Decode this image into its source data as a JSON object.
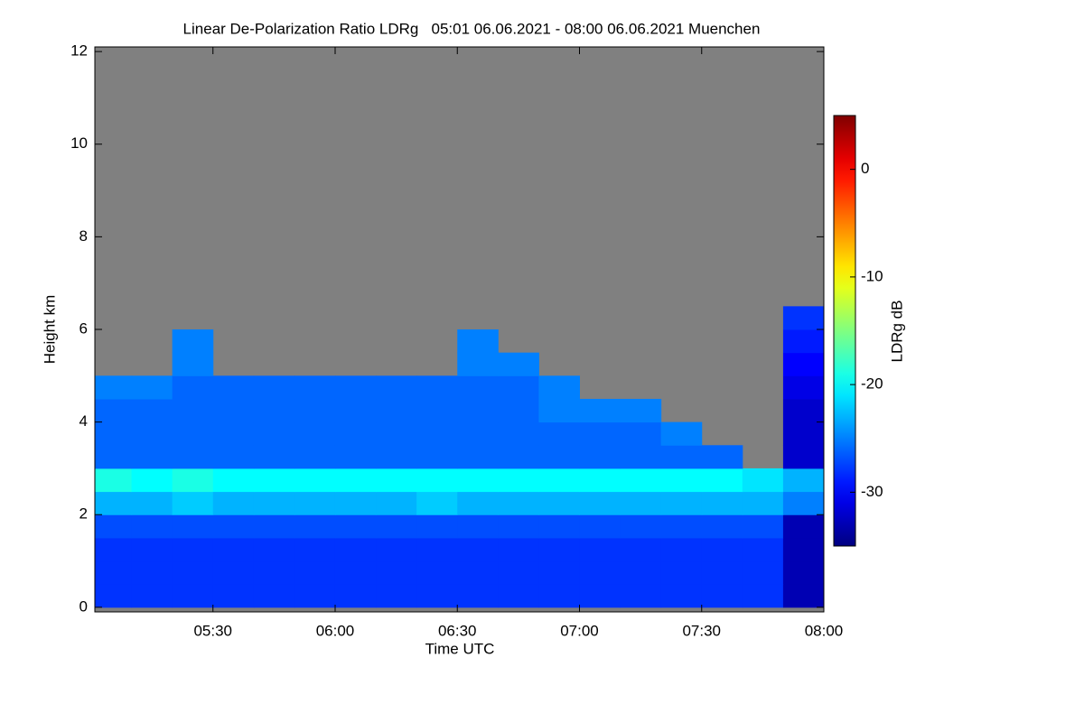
{
  "chart_data": {
    "type": "heatmap",
    "title": "Linear De-Polarization Ratio LDRg   05:01 06.06.2021 - 08:00 06.06.2021 Muenchen",
    "xlabel": "Time UTC",
    "ylabel": "Height km",
    "colorbar_label": "LDRg dB",
    "xlim": [
      "05:01",
      "08:00"
    ],
    "xticks": [
      "05:30",
      "06:00",
      "06:30",
      "07:00",
      "07:30",
      "08:00"
    ],
    "ylim": [
      -0.1,
      12.1
    ],
    "yticks": [
      0,
      2,
      4,
      6,
      8,
      10,
      12
    ],
    "zlim": [
      -35,
      5
    ],
    "zticks": [
      0,
      -10,
      -20,
      -30
    ],
    "colormap": "jet",
    "missing_color": "#808080",
    "x": [
      "05:01",
      "05:10",
      "05:20",
      "05:30",
      "05:40",
      "05:50",
      "06:00",
      "06:10",
      "06:20",
      "06:30",
      "06:40",
      "06:50",
      "07:00",
      "07:10",
      "07:20",
      "07:30",
      "07:40",
      "07:50"
    ],
    "ybins": [
      0,
      0.5,
      1,
      1.5,
      2,
      2.5,
      3,
      3.5,
      4,
      4.5,
      5,
      5.5,
      6,
      6.5,
      7
    ],
    "z": [
      [
        -28,
        -28,
        -28,
        -28,
        -28,
        -28,
        -28,
        -28,
        -28,
        -28,
        -28,
        -28,
        -28,
        -28,
        -28,
        -28,
        -28,
        -33
      ],
      [
        -28,
        -28,
        -28,
        -28,
        -28,
        -28,
        -28,
        -28,
        -28,
        -28,
        -28,
        -28,
        -28,
        -28,
        -28,
        -28,
        -28,
        -33
      ],
      [
        -28,
        -28,
        -28,
        -28,
        -28,
        -28,
        -28,
        -28,
        -28,
        -28,
        -28,
        -28,
        -28,
        -28,
        -28,
        -28,
        -28,
        -33
      ],
      [
        -27,
        -27,
        -27,
        -27,
        -27,
        -27,
        -27,
        -27,
        -27,
        -27,
        -27,
        -27,
        -27,
        -27,
        -27,
        -27,
        -27,
        -33
      ],
      [
        -23,
        -23,
        -22,
        -23,
        -23,
        -23,
        -23,
        -23,
        -22,
        -23,
        -23,
        -23,
        -23,
        -23,
        -23,
        -23,
        -23,
        -25
      ],
      [
        -19,
        -20,
        -19,
        -20,
        -20,
        -20,
        -20,
        -20,
        -20,
        -20,
        -20,
        -20,
        -20,
        -20,
        -20,
        -20,
        -21,
        -23
      ],
      [
        -26,
        -26,
        -26,
        -26,
        -26,
        -26,
        -26,
        -26,
        -26,
        -26,
        -26,
        -26,
        -26,
        -26,
        -26,
        -26,
        null,
        -32
      ],
      [
        -26,
        -26,
        -26,
        -26,
        -26,
        -26,
        -26,
        -26,
        -26,
        -26,
        -26,
        -26,
        -26,
        -26,
        -25,
        null,
        null,
        -32
      ],
      [
        -26,
        -26,
        -26,
        -26,
        -26,
        -26,
        -26,
        -26,
        -26,
        -26,
        -26,
        -25,
        -25,
        -25,
        null,
        null,
        null,
        -32
      ],
      [
        -25,
        -25,
        -26,
        -26,
        -26,
        -26,
        -26,
        -26,
        -26,
        -26,
        -26,
        -25,
        null,
        null,
        null,
        null,
        null,
        -31
      ],
      [
        null,
        null,
        -25,
        null,
        null,
        null,
        null,
        null,
        null,
        -25,
        -25,
        null,
        null,
        null,
        null,
        null,
        null,
        -30
      ],
      [
        null,
        null,
        -25,
        null,
        null,
        null,
        null,
        null,
        null,
        -25,
        null,
        null,
        null,
        null,
        null,
        null,
        null,
        -29
      ],
      [
        null,
        null,
        null,
        null,
        null,
        null,
        null,
        null,
        null,
        null,
        null,
        null,
        null,
        null,
        null,
        null,
        null,
        -28
      ],
      [
        null,
        null,
        null,
        null,
        null,
        null,
        null,
        null,
        null,
        null,
        null,
        null,
        null,
        null,
        null,
        null,
        null,
        null
      ]
    ]
  }
}
